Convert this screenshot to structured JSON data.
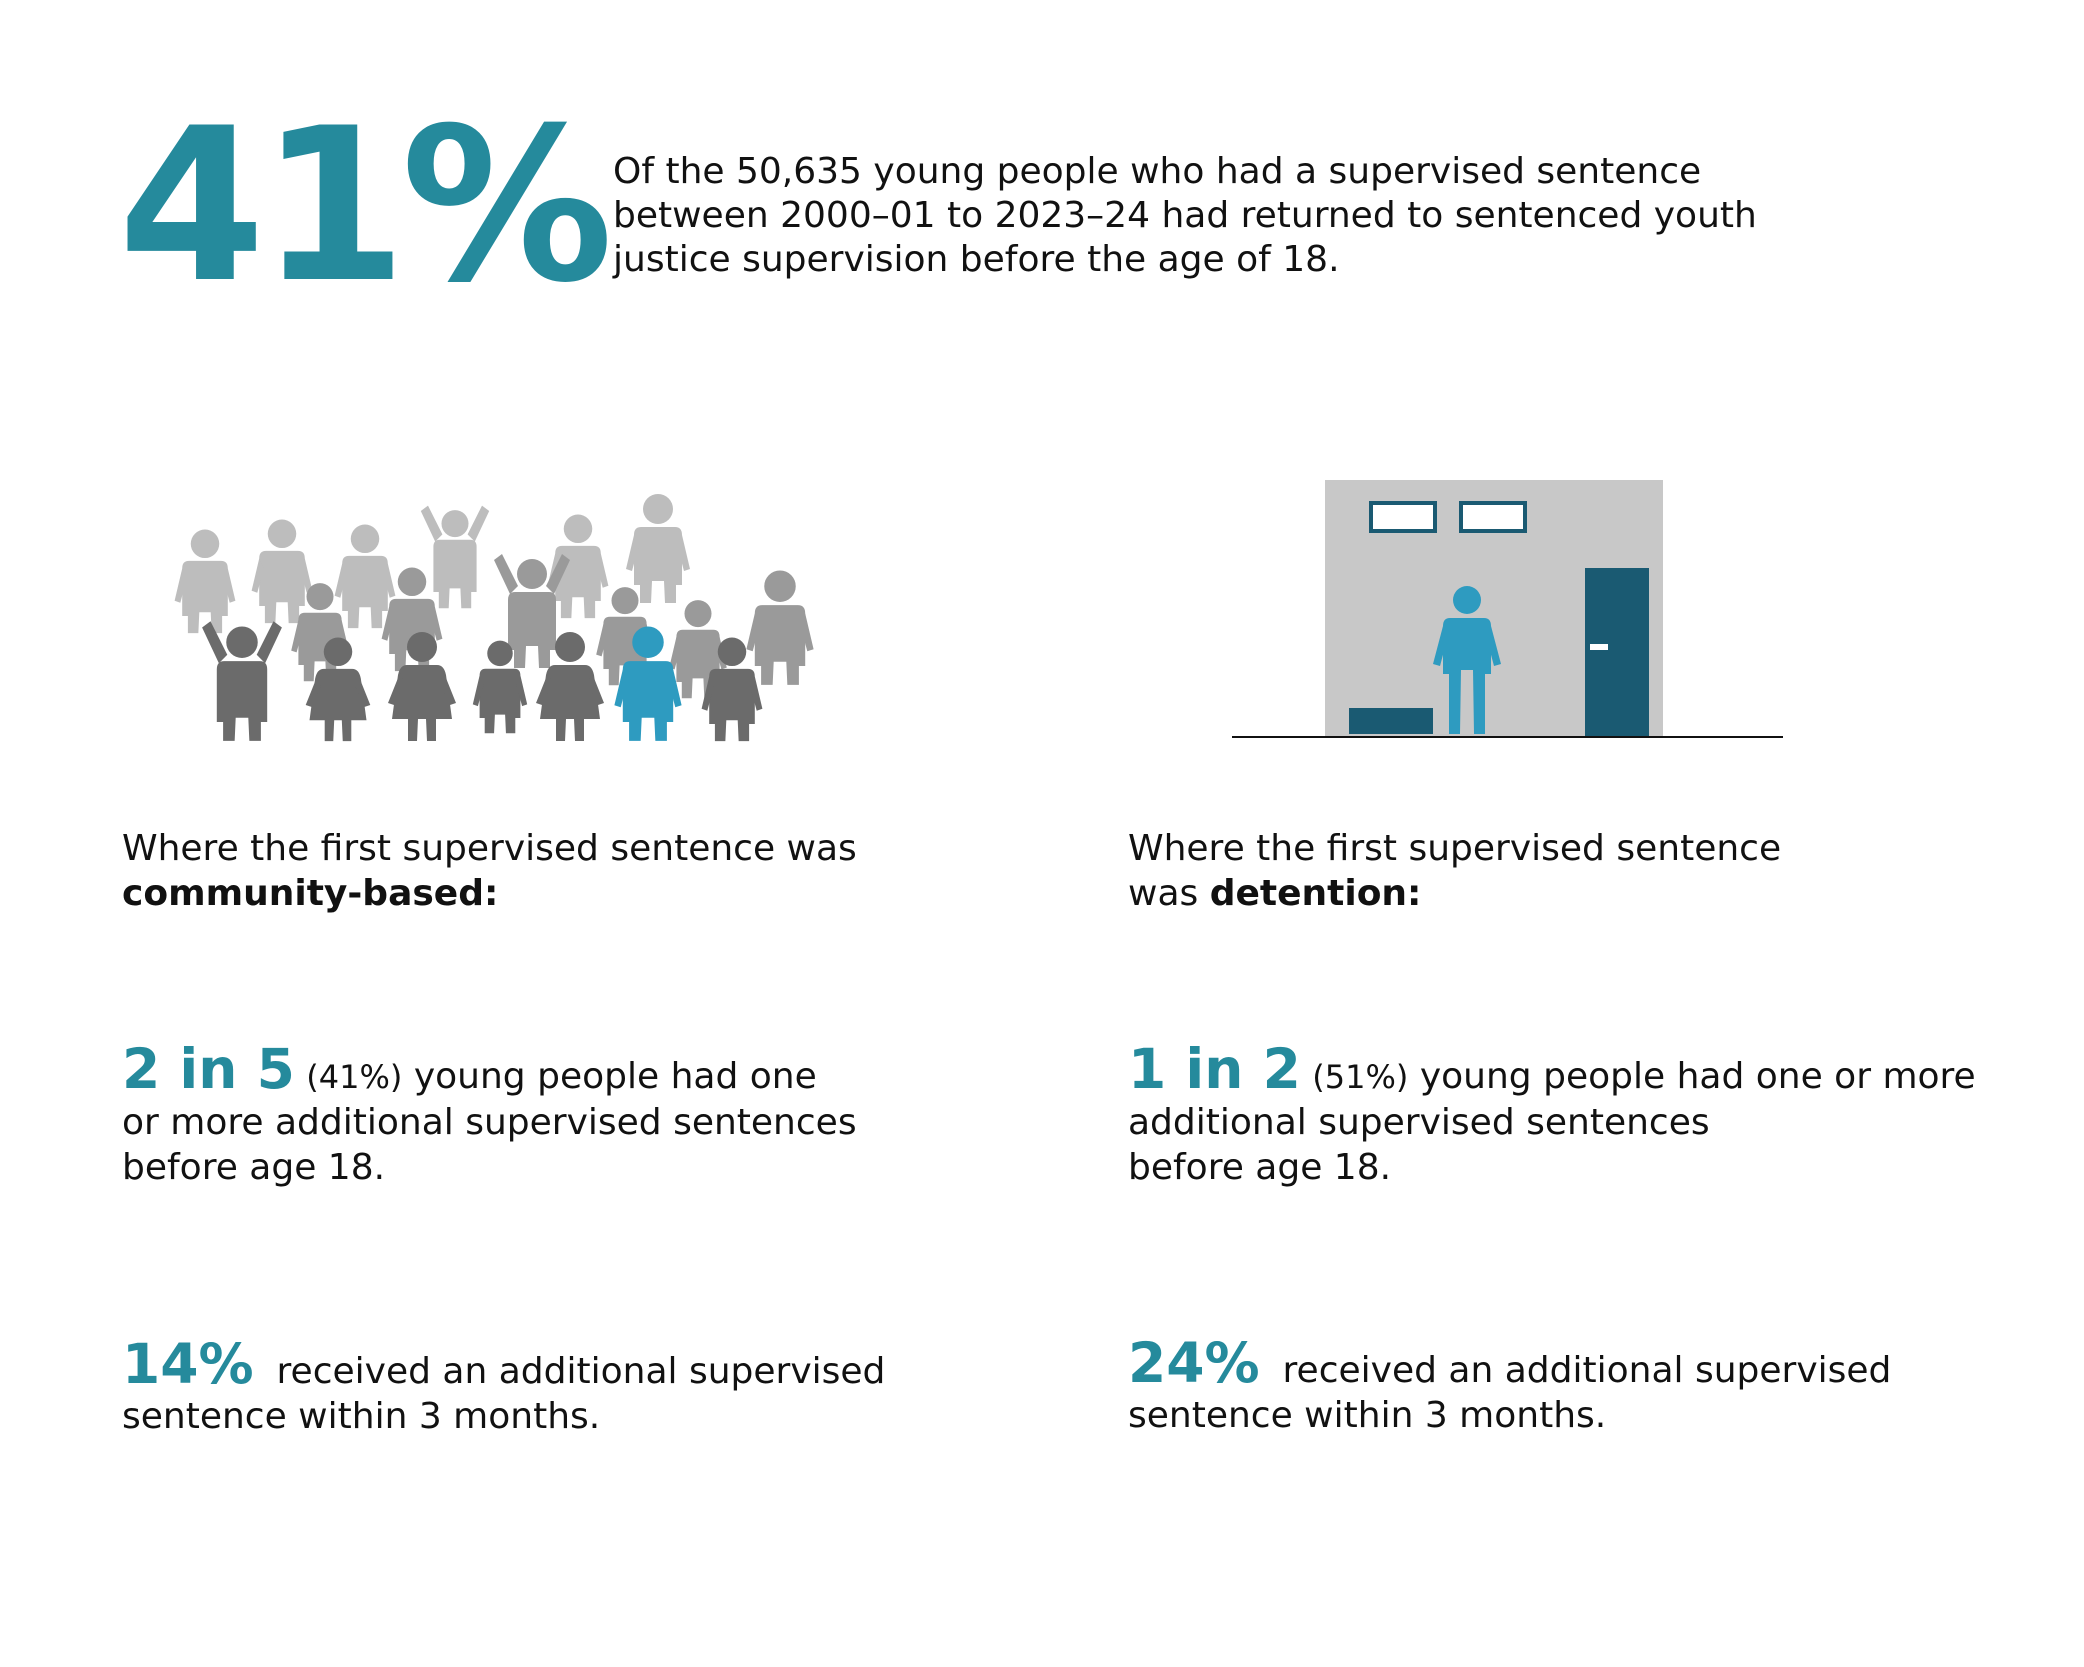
{
  "hero": {
    "figure": "41%",
    "lines": [
      "Of the 50,635 young people who had a supervised sentence",
      "between 2000–01 to 2023–24 had returned to sentenced youth",
      "justice supervision before the age of 18."
    ]
  },
  "illustrations": {
    "crowd_icon": "crowd-of-people-icon",
    "detention_icon": "detention-room-icon",
    "colors": {
      "highlight": "#2e9bc0",
      "accent_text": "#258a9c",
      "dark_grey": "#6b6b6b",
      "mid_grey": "#8e8e8e",
      "light_grey": "#bdbdbd",
      "room_wall": "#c8c8c8",
      "room_fixtures": "#1a5a72"
    }
  },
  "community": {
    "heading_line1": "Where the first supervised sentence was",
    "heading_bold": "community-based:",
    "stat1": {
      "big": "2 in 5",
      "paren": "(41%)",
      "line1_rest": " young people had one",
      "line2": "or  more additional supervised sentences",
      "line3": "before age 18."
    },
    "stat2": {
      "big": "14%",
      "line1_rest": "received an additional supervised",
      "line2": "sentence within 3 months."
    }
  },
  "detention": {
    "heading_line1": "Where the first supervised sentence",
    "heading_prefix": "was ",
    "heading_bold": "detention:",
    "stat1": {
      "big": "1 in 2",
      "paren": "(51%)",
      "line1_rest": " young people had one or more",
      "line2": "additional supervised sentences",
      "line3": "before age 18."
    },
    "stat2": {
      "big": "24%",
      "line1_rest": "received an additional supervised",
      "line2": "sentence within 3 months."
    }
  }
}
